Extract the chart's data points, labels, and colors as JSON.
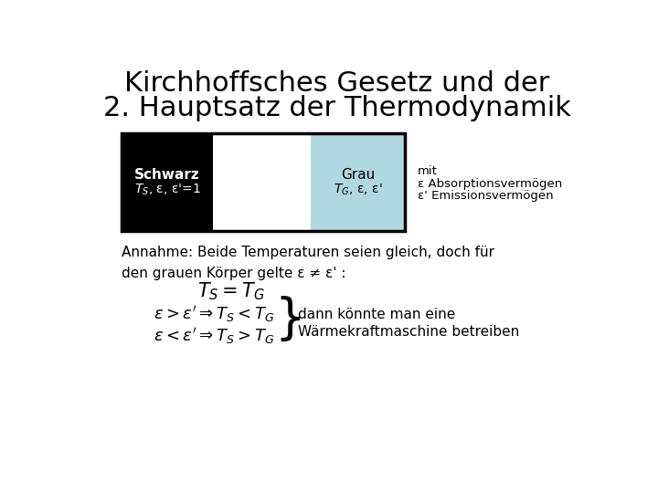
{
  "title_line1": "Kirchhoffsches Gesetz und der",
  "title_line2": "2. Hauptsatz der Thermodynamik",
  "title_fontsize": 22,
  "bg_color": "#ffffff",
  "box_border_color": "#000000",
  "black_box_color": "#000000",
  "white_box_color": "#ffffff",
  "gray_box_color": "#b0d8e0",
  "schwarz_label1": "Schwarz",
  "schwarz_label2": "$T_S$, ε, ε'=1",
  "schwarz_text_color": "#ffffff",
  "grau_label1": "Grau",
  "grau_label2": "$T_G$, ε, ε'",
  "grau_text_color": "#000000",
  "mit_line1": "mit",
  "mit_line2": "ε Absorptionsvermögen",
  "mit_line3": "ε' Emissionsvermögen",
  "annahme_text": "Annahme: Beide Temperaturen seien gleich, doch für\nden grauen Körper gelte ε ≠ ε' :",
  "formula1": "$T_S = T_G$",
  "formula2a": "$\\varepsilon > \\varepsilon'\\Rightarrow T_S < T_G$",
  "formula2b": "$\\varepsilon < \\varepsilon'\\Rightarrow T_S > T_G$",
  "dann_text": "dann könnte man eine",
  "waerme_text": "Wärmekraftmaschine betreiben",
  "text_fontsize": 11,
  "formula_fontsize": 13,
  "annahme_fontsize": 11
}
